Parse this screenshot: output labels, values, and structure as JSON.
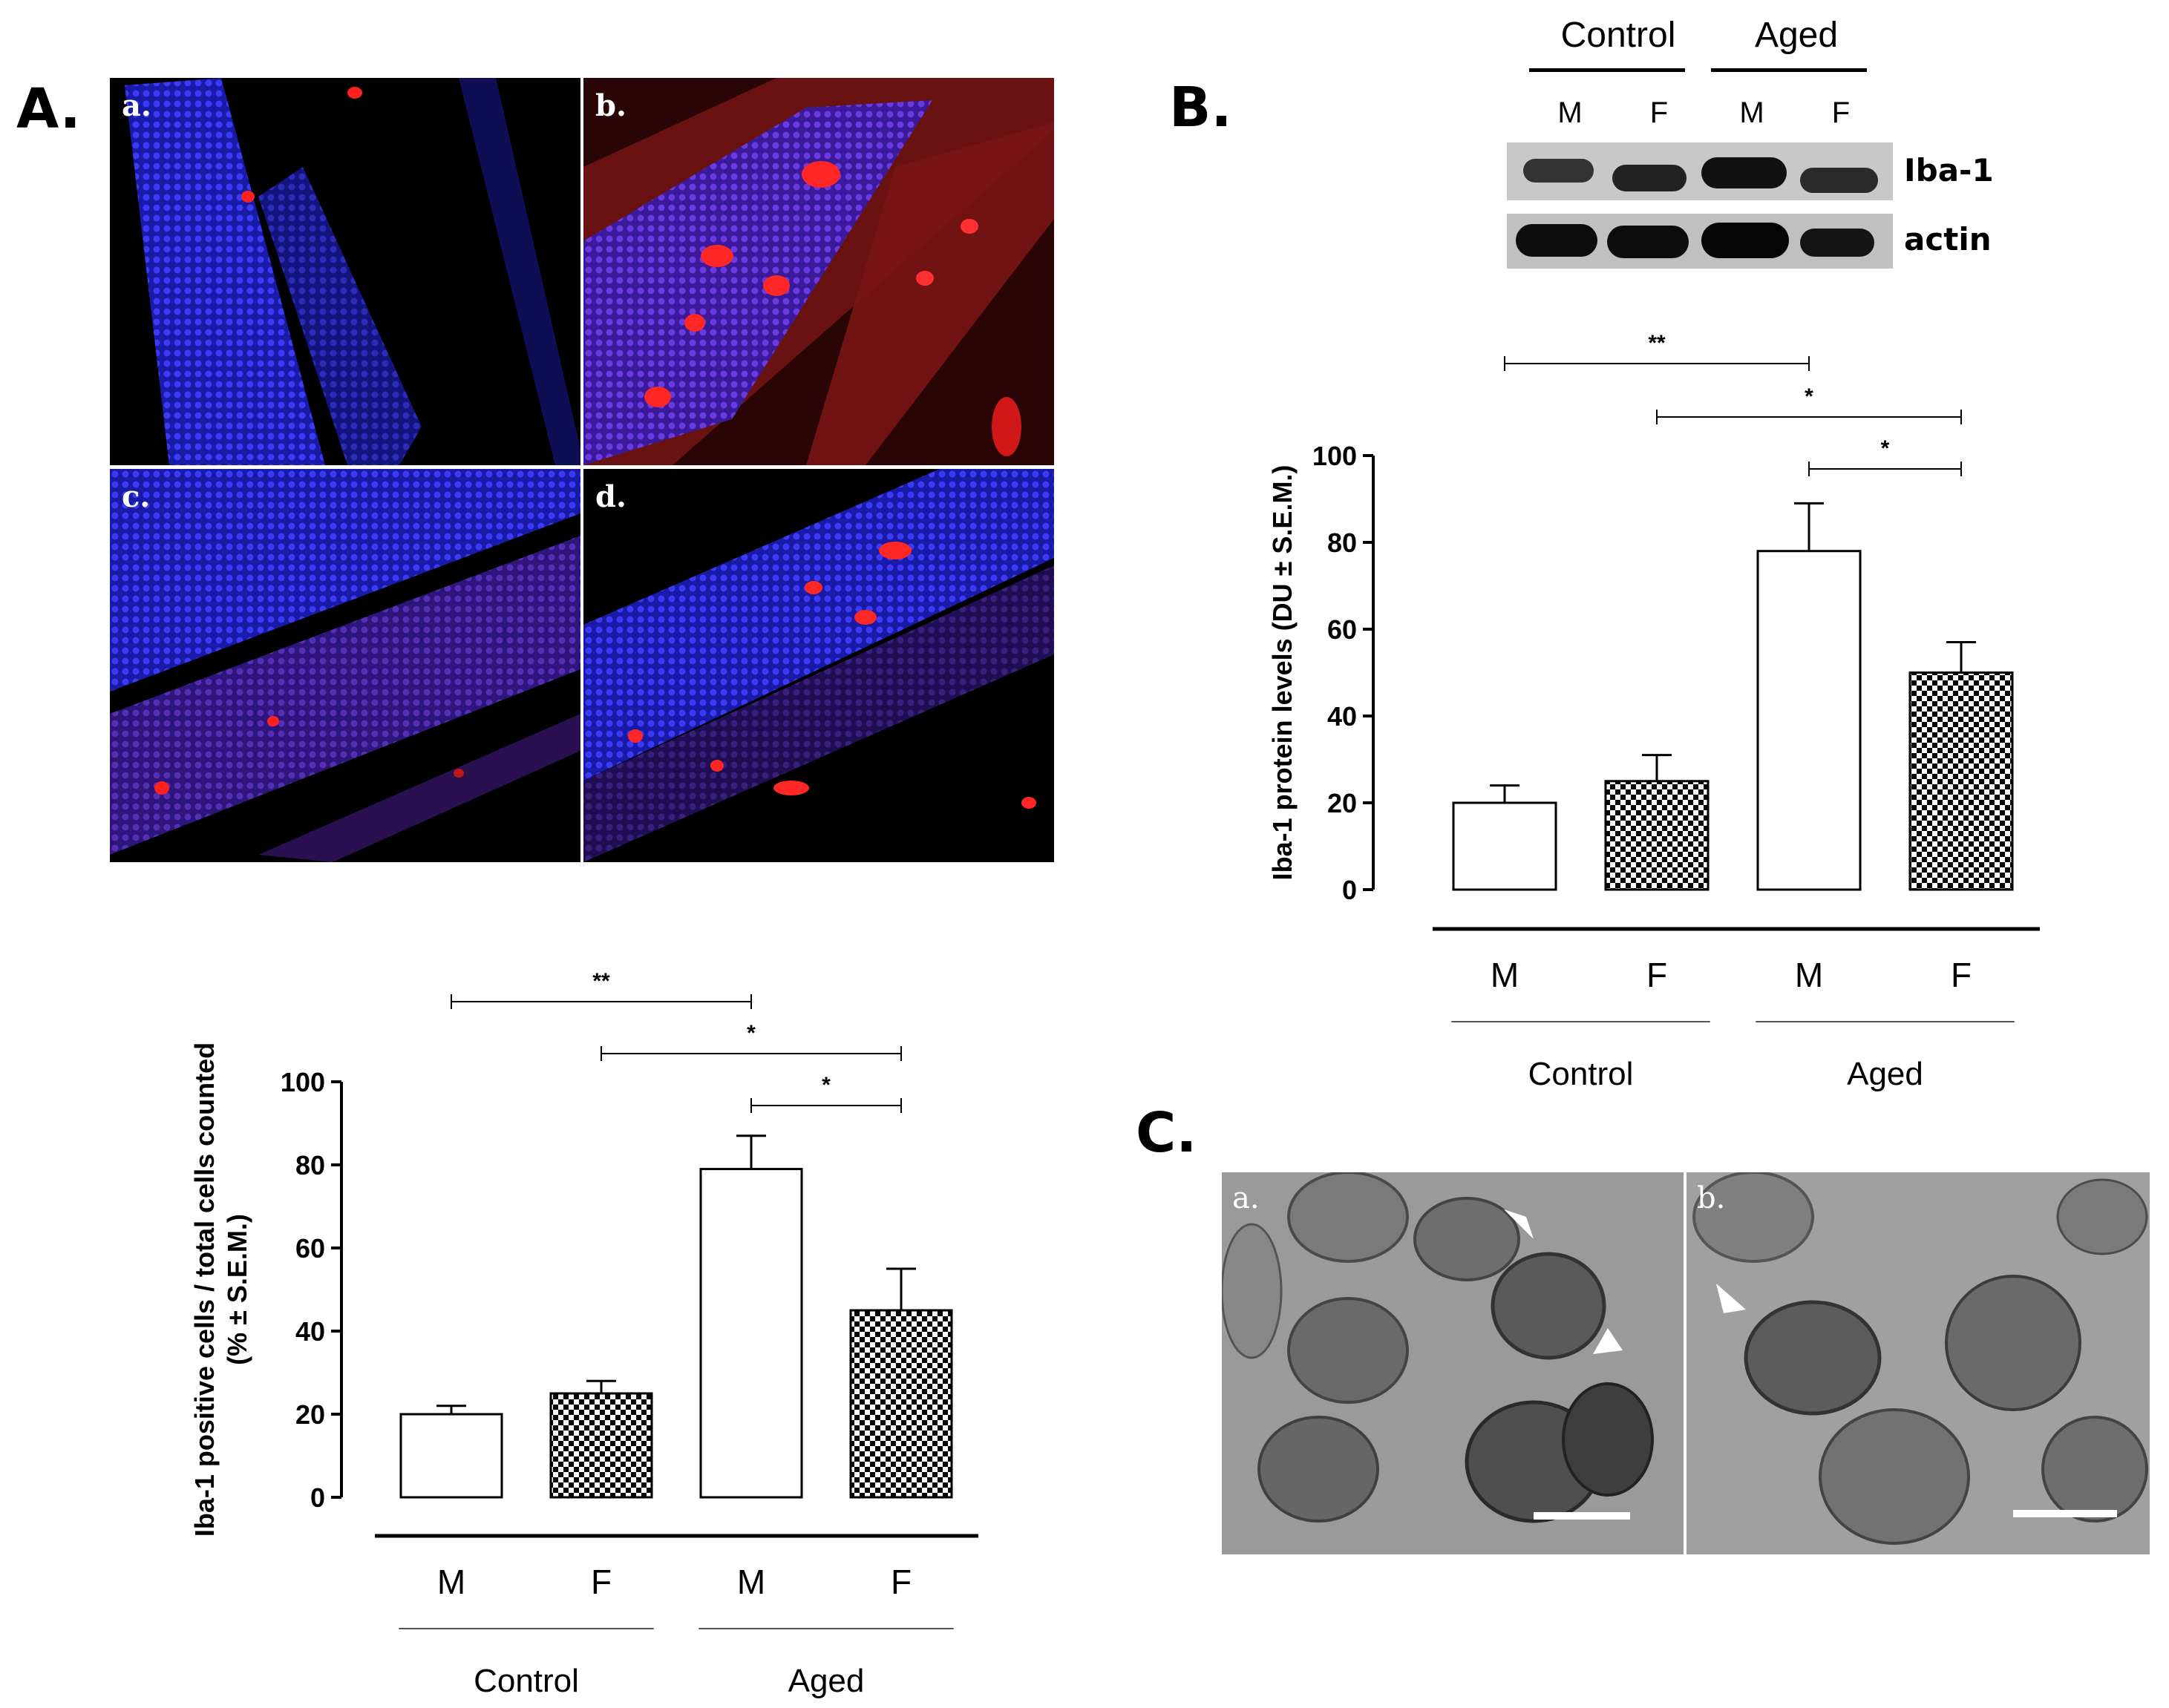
{
  "panels": {
    "A": {
      "label": "A.",
      "images": [
        {
          "sub": "a."
        },
        {
          "sub": "b."
        },
        {
          "sub": "c."
        },
        {
          "sub": "d."
        }
      ]
    },
    "B": {
      "label": "B.",
      "blot": {
        "group_labels": [
          "Control",
          "Aged"
        ],
        "lane_labels": [
          "M",
          "F",
          "M",
          "F"
        ],
        "rows": [
          "Iba-1",
          "actin"
        ]
      }
    },
    "C": {
      "label": "C.",
      "images": [
        {
          "sub": "a."
        },
        {
          "sub": "b."
        }
      ]
    }
  },
  "chart_data": [
    {
      "type": "bar",
      "panel": "A",
      "categories": [
        "M",
        "F",
        "M",
        "F"
      ],
      "groups": [
        {
          "name": "Control",
          "categories": [
            0,
            1
          ]
        },
        {
          "name": "Aged",
          "categories": [
            2,
            3
          ]
        }
      ],
      "values": [
        20,
        25,
        79,
        45
      ],
      "errors": [
        2,
        3,
        8,
        10
      ],
      "fills": [
        "open",
        "checker",
        "open",
        "checker"
      ],
      "ylabel_line1": "Iba-1 positive cells / total cells counted",
      "ylabel_line2": "(% ± S.E.M.)",
      "ylim": [
        0,
        100
      ],
      "yticks": [
        0,
        20,
        40,
        60,
        80,
        100
      ],
      "significance": [
        {
          "from": 0,
          "to": 2,
          "label": "**"
        },
        {
          "from": 1,
          "to": 3,
          "label": "*"
        },
        {
          "from": 2,
          "to": 3,
          "label": "*"
        }
      ]
    },
    {
      "type": "bar",
      "panel": "B",
      "categories": [
        "M",
        "F",
        "M",
        "F"
      ],
      "groups": [
        {
          "name": "Control",
          "categories": [
            0,
            1
          ]
        },
        {
          "name": "Aged",
          "categories": [
            2,
            3
          ]
        }
      ],
      "values": [
        20,
        25,
        78,
        50
      ],
      "errors": [
        4,
        6,
        11,
        7
      ],
      "fills": [
        "open",
        "checker",
        "open",
        "checker"
      ],
      "ylabel_line1": "Iba-1 protein levels (DU ± S.E.M.)",
      "ylim": [
        0,
        100
      ],
      "yticks": [
        0,
        20,
        40,
        60,
        80,
        100
      ],
      "significance": [
        {
          "from": 0,
          "to": 2,
          "label": "**"
        },
        {
          "from": 1,
          "to": 3,
          "label": "*"
        },
        {
          "from": 2,
          "to": 3,
          "label": "*"
        }
      ]
    }
  ]
}
